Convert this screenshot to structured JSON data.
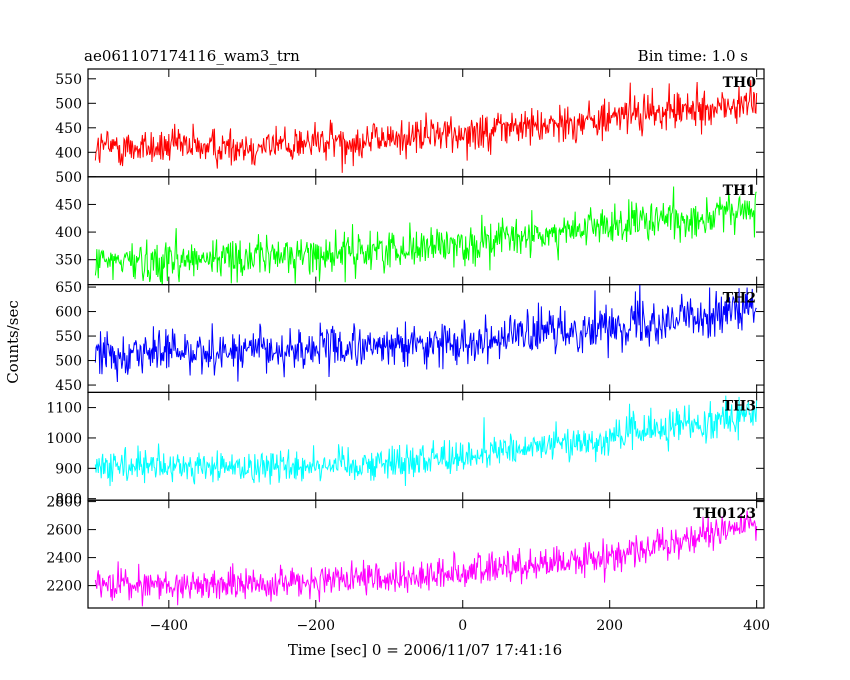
{
  "header": {
    "left_title": "ae061107174116_wam3_trn",
    "right_title": "Bin time: 1.0 s"
  },
  "chart_data": {
    "type": "line",
    "xlabel": "Time [sec] 0 = 2006/11/07 17:41:16",
    "ylabel": "Counts/sec",
    "xlim": [
      -510,
      410
    ],
    "x_ticks": [
      -400,
      -200,
      0,
      200,
      400
    ],
    "x_tick_labels": [
      "−400",
      "−200",
      "0",
      "200",
      "400"
    ],
    "bin_time": 1.0,
    "x_start": -500,
    "x_end": 400,
    "panels": [
      {
        "name": "TH0",
        "color": "#ff0000",
        "ylim": [
          350,
          570
        ],
        "y_ticks": [
          400,
          450,
          500,
          550
        ],
        "trend": [
          [
            -500,
            410
          ],
          [
            -300,
            412
          ],
          [
            -100,
            428
          ],
          [
            100,
            455
          ],
          [
            400,
            500
          ]
        ],
        "noise": 20
      },
      {
        "name": "TH1",
        "color": "#00ff00",
        "ylim": [
          305,
          500
        ],
        "y_ticks": [
          350,
          400,
          450,
          500
        ],
        "trend": [
          [
            -500,
            345
          ],
          [
            -200,
            360
          ],
          [
            0,
            378
          ],
          [
            200,
            410
          ],
          [
            400,
            440
          ]
        ],
        "noise": 18
      },
      {
        "name": "TH2",
        "color": "#0000ff",
        "ylim": [
          435,
          655
        ],
        "y_ticks": [
          450,
          500,
          550,
          600,
          650
        ],
        "trend": [
          [
            -500,
            518
          ],
          [
            -300,
            520
          ],
          [
            -100,
            528
          ],
          [
            0,
            540
          ],
          [
            200,
            570
          ],
          [
            400,
            605
          ]
        ],
        "noise": 22
      },
      {
        "name": "TH3",
        "color": "#00ffff",
        "ylim": [
          795,
          1150
        ],
        "y_ticks": [
          800,
          900,
          1000,
          1100
        ],
        "trend": [
          [
            -500,
            900
          ],
          [
            -300,
            905
          ],
          [
            -100,
            920
          ],
          [
            0,
            940
          ],
          [
            200,
            1000
          ],
          [
            400,
            1085
          ]
        ],
        "noise": 28
      },
      {
        "name": "TH0123",
        "color": "#ff00ff",
        "ylim": [
          2040,
          2810
        ],
        "y_ticks": [
          2200,
          2400,
          2600,
          2800
        ],
        "trend": [
          [
            -500,
            2200
          ],
          [
            -300,
            2210
          ],
          [
            -100,
            2245
          ],
          [
            0,
            2300
          ],
          [
            200,
            2400
          ],
          [
            400,
            2650
          ]
        ],
        "noise": 55
      }
    ]
  }
}
